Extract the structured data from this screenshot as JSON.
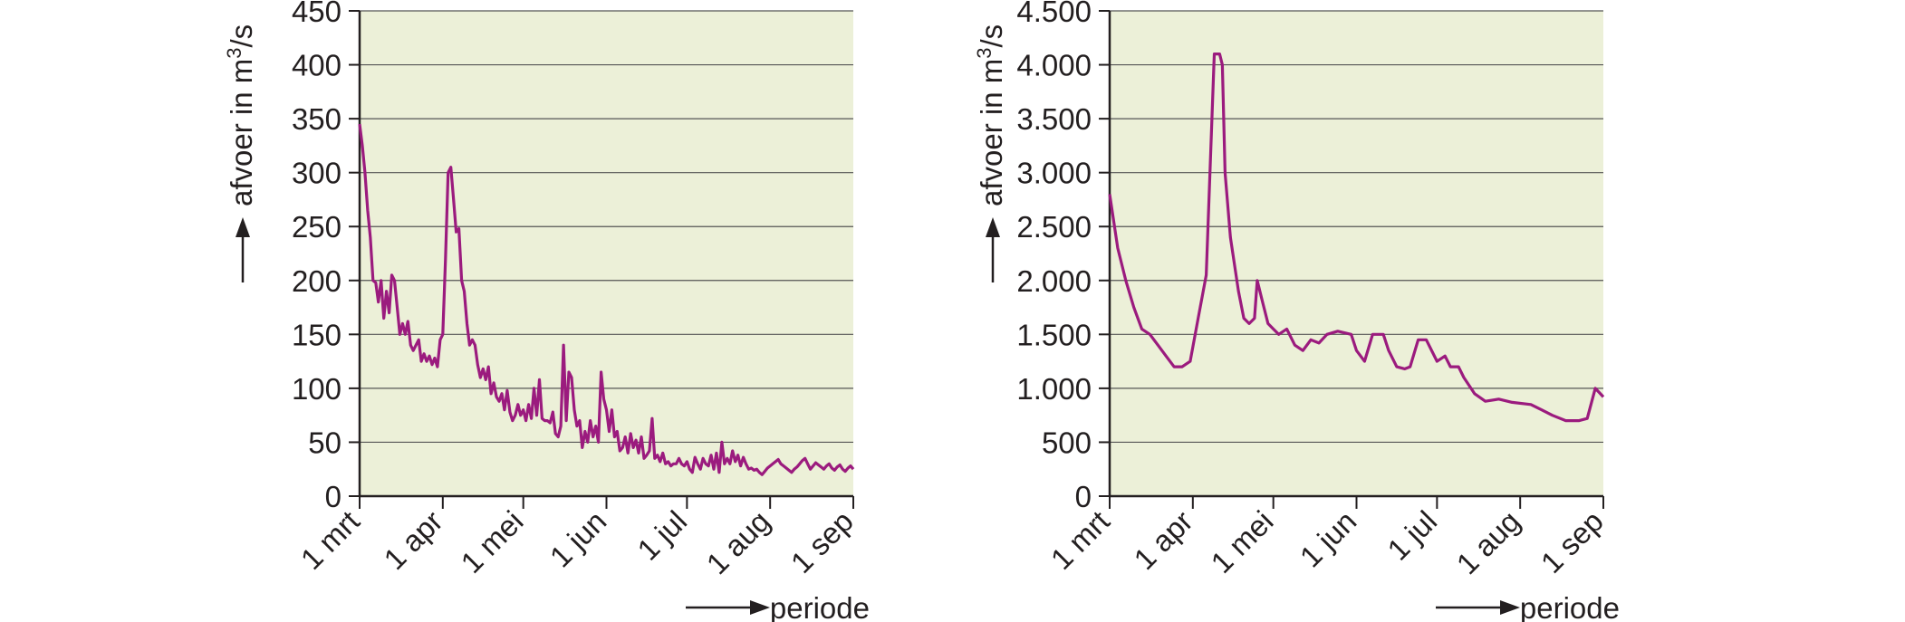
{
  "chart_data": [
    {
      "type": "line",
      "ylabel": "afvoer in m",
      "ylabel_superscript": "3",
      "ylabel_suffix": "/s",
      "xlabel": "periode",
      "ylim": [
        0,
        450
      ],
      "y_ticks": [
        0,
        50,
        100,
        150,
        200,
        250,
        300,
        350,
        400,
        450
      ],
      "y_tick_labels": [
        "0",
        "50",
        "100",
        "150",
        "200",
        "250",
        "300",
        "350",
        "400",
        "450"
      ],
      "x_ticks": [
        0,
        31,
        61,
        92,
        122,
        153,
        184
      ],
      "x_tick_labels": [
        "1 mrt",
        "1 apr",
        "1 mei",
        "1 jun",
        "1 jul",
        "1 aug",
        "1 sep"
      ],
      "xlim": [
        0,
        184
      ],
      "background": "#ecf0d8",
      "line_color": "#9b1b7e",
      "series": [
        {
          "name": "afvoer",
          "x": [
            0,
            1,
            2,
            3,
            4,
            5,
            6,
            7,
            8,
            9,
            10,
            11,
            12,
            13,
            14,
            15,
            16,
            17,
            18,
            19,
            20,
            21,
            22,
            23,
            24,
            25,
            26,
            27,
            28,
            29,
            30,
            31,
            32,
            33,
            34,
            35,
            36,
            37,
            38,
            39,
            40,
            41,
            42,
            43,
            44,
            45,
            46,
            47,
            48,
            49,
            50,
            51,
            52,
            53,
            54,
            55,
            56,
            57,
            58,
            59,
            60,
            61,
            62,
            63,
            64,
            65,
            66,
            67,
            68,
            69,
            70,
            71,
            72,
            73,
            74,
            75,
            76,
            77,
            78,
            79,
            80,
            81,
            82,
            83,
            84,
            85,
            86,
            87,
            88,
            89,
            90,
            91,
            92,
            93,
            94,
            95,
            96,
            97,
            98,
            99,
            100,
            101,
            102,
            103,
            104,
            105,
            106,
            107,
            108,
            109,
            110,
            111,
            112,
            113,
            114,
            115,
            116,
            117,
            118,
            119,
            120,
            121,
            122,
            123,
            124,
            125,
            126,
            127,
            128,
            129,
            130,
            131,
            132,
            133,
            134,
            135,
            136,
            137,
            138,
            139,
            140,
            141,
            142,
            143,
            144,
            145,
            146,
            147,
            148,
            149,
            150,
            151,
            152,
            153,
            154,
            155,
            156,
            157,
            158,
            159,
            160,
            161,
            162,
            163,
            164,
            165,
            166,
            167,
            168,
            169,
            170,
            171,
            172,
            173,
            174,
            175,
            176,
            177,
            178,
            179,
            180,
            181,
            182,
            183,
            184
          ],
          "values": [
            345,
            325,
            300,
            265,
            240,
            200,
            198,
            180,
            200,
            165,
            190,
            170,
            205,
            200,
            175,
            150,
            160,
            150,
            162,
            140,
            135,
            140,
            145,
            125,
            132,
            125,
            130,
            122,
            128,
            120,
            145,
            150,
            220,
            300,
            305,
            275,
            245,
            248,
            200,
            190,
            160,
            140,
            145,
            140,
            122,
            110,
            118,
            108,
            120,
            95,
            105,
            92,
            88,
            95,
            80,
            98,
            78,
            70,
            75,
            85,
            75,
            80,
            70,
            85,
            72,
            100,
            75,
            108,
            72,
            70,
            70,
            68,
            78,
            58,
            55,
            65,
            140,
            70,
            115,
            110,
            80,
            65,
            70,
            45,
            60,
            50,
            70,
            55,
            65,
            50,
            115,
            90,
            80,
            60,
            80,
            55,
            60,
            42,
            45,
            55,
            40,
            58,
            45,
            52,
            40,
            55,
            35,
            38,
            42,
            72,
            35,
            38,
            32,
            40,
            30,
            32,
            28,
            30,
            30,
            35,
            30,
            28,
            32,
            25,
            22,
            36,
            30,
            25,
            35,
            30,
            28,
            38,
            25,
            40,
            22,
            50,
            30,
            35,
            30,
            42,
            32,
            38,
            28,
            36,
            30,
            25,
            26,
            24,
            25,
            22,
            20,
            23,
            26,
            28,
            30,
            32,
            34,
            30,
            28,
            26,
            24,
            22,
            25,
            27,
            30,
            33,
            35,
            30,
            25,
            28,
            31,
            29,
            27,
            25,
            28,
            30,
            26,
            24,
            27,
            29,
            25,
            23,
            26,
            28,
            25
          ]
        }
      ]
    },
    {
      "type": "line",
      "ylabel": "afvoer in m",
      "ylabel_superscript": "3",
      "ylabel_suffix": "/s",
      "xlabel": "periode",
      "ylim": [
        0,
        4500
      ],
      "y_ticks": [
        0,
        500,
        1000,
        1500,
        2000,
        2500,
        3000,
        3500,
        4000,
        4500
      ],
      "y_tick_labels": [
        "0",
        "500",
        "1.000",
        "1.500",
        "2.000",
        "2.500",
        "3.000",
        "3.500",
        "4.000",
        "4.500"
      ],
      "x_ticks": [
        0,
        31,
        61,
        92,
        122,
        153,
        184
      ],
      "x_tick_labels": [
        "1 mrt",
        "1 apr",
        "1 mei",
        "1 jun",
        "1 jul",
        "1 aug",
        "1 sep"
      ],
      "xlim": [
        0,
        184
      ],
      "background": "#ecf0d8",
      "line_color": "#9b1b7e",
      "series": [
        {
          "name": "afvoer",
          "x": [
            0,
            3,
            6,
            9,
            12,
            15,
            18,
            21,
            24,
            27,
            30,
            33,
            36,
            39,
            41,
            42,
            43,
            45,
            48,
            50,
            52,
            54,
            55,
            57,
            59,
            61,
            63,
            66,
            69,
            72,
            75,
            78,
            81,
            85,
            90,
            92,
            95,
            98,
            100,
            102,
            104,
            107,
            110,
            112,
            115,
            118,
            122,
            125,
            127,
            130,
            132,
            136,
            140,
            145,
            150,
            157,
            161,
            165,
            170,
            175,
            178,
            181,
            184
          ],
          "values": [
            2800,
            2300,
            2000,
            1750,
            1550,
            1500,
            1400,
            1300,
            1200,
            1200,
            1250,
            1650,
            2050,
            4100,
            4100,
            4000,
            3000,
            2400,
            1900,
            1650,
            1600,
            1650,
            2000,
            1800,
            1600,
            1550,
            1500,
            1550,
            1400,
            1350,
            1450,
            1420,
            1500,
            1530,
            1500,
            1350,
            1250,
            1500,
            1500,
            1500,
            1350,
            1200,
            1180,
            1200,
            1450,
            1450,
            1250,
            1300,
            1200,
            1200,
            1100,
            950,
            880,
            900,
            870,
            850,
            800,
            750,
            700,
            700,
            720,
            1000,
            920
          ]
        }
      ]
    }
  ]
}
